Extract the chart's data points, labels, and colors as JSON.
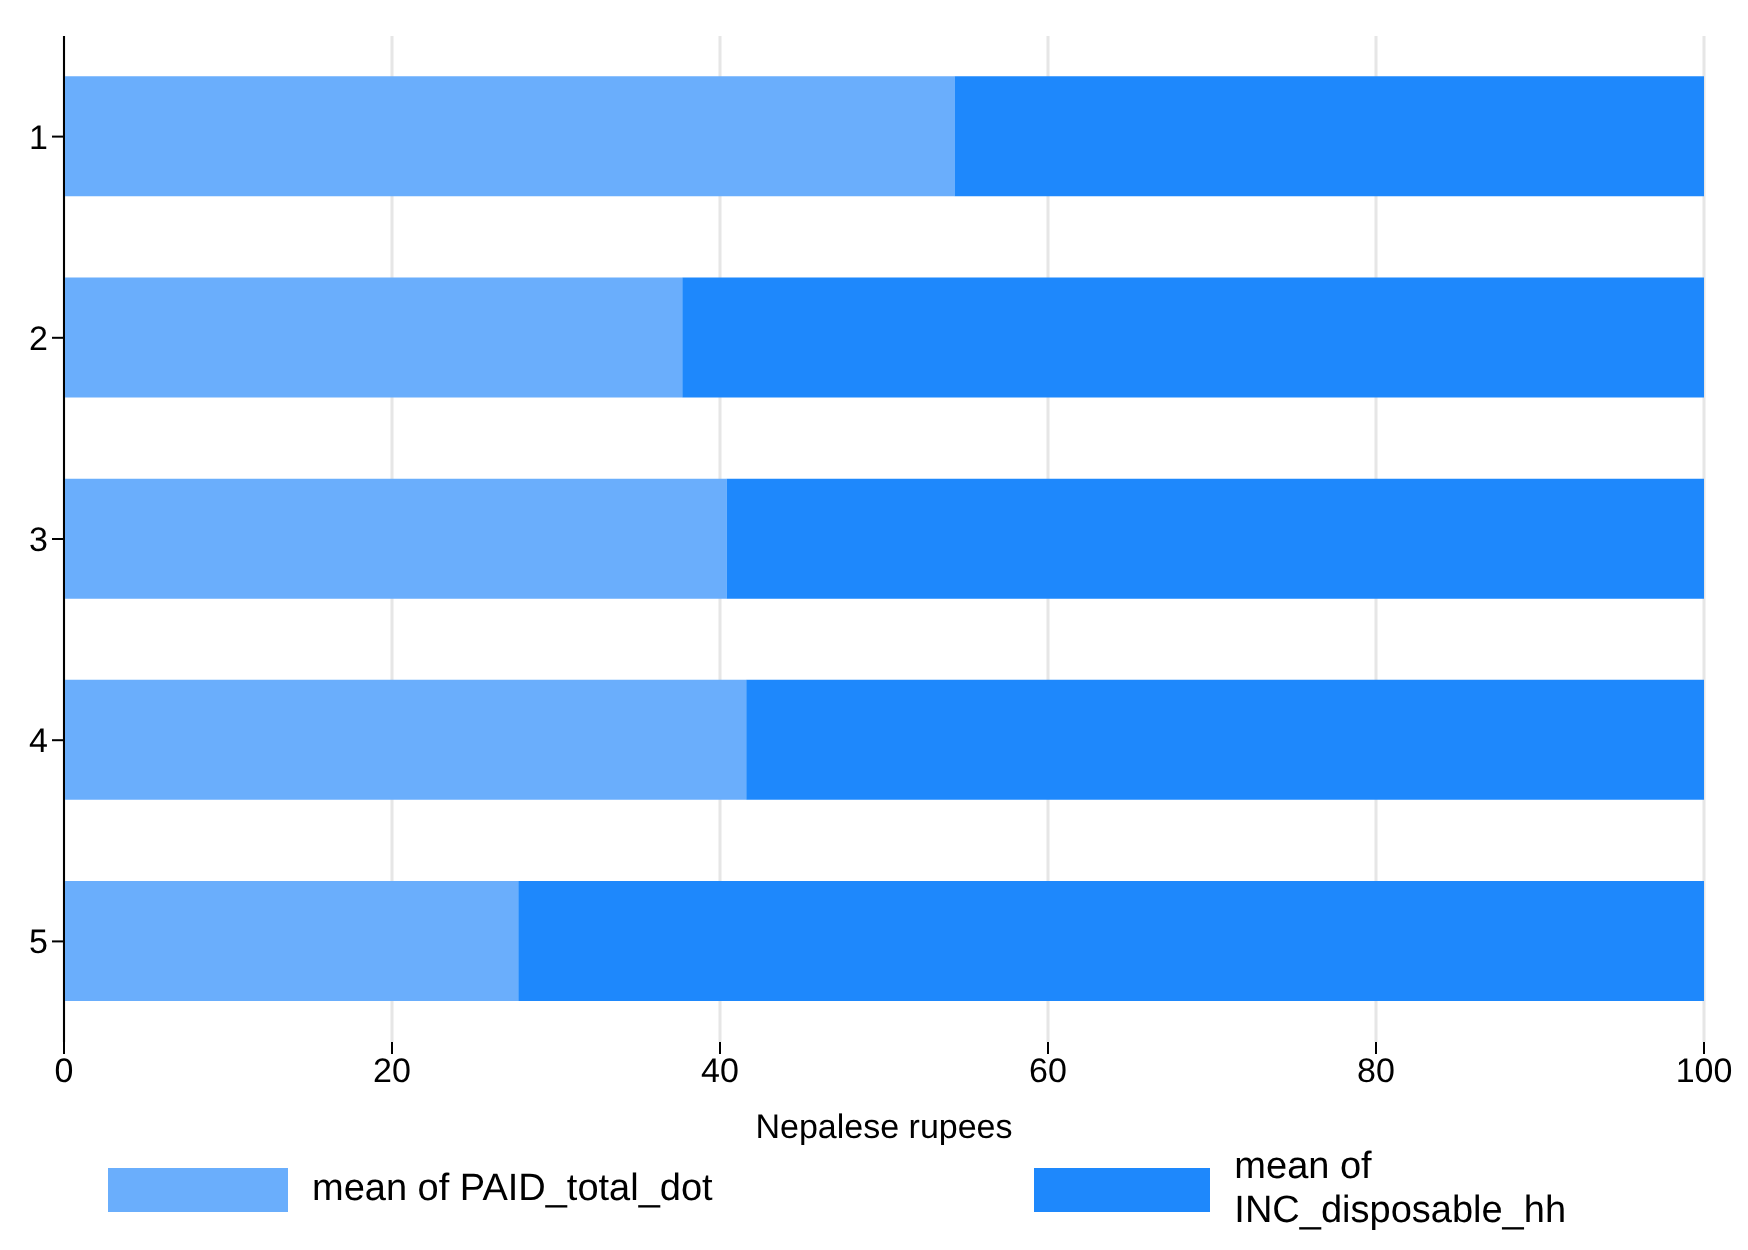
{
  "chart_data": {
    "type": "bar",
    "orientation": "horizontal",
    "stacked": true,
    "categories": [
      "1",
      "2",
      "3",
      "4",
      "5"
    ],
    "series": [
      {
        "name": "mean of PAID_total_dot",
        "color": "#6aaefc",
        "values": [
          54.3,
          37.7,
          40.4,
          41.6,
          27.7
        ]
      },
      {
        "name": "mean of INC_disposable_hh",
        "color": "#1e88fc",
        "values": [
          45.7,
          62.3,
          59.6,
          58.4,
          72.3
        ]
      }
    ],
    "xlabel": "Nepalese rupees",
    "xlim": [
      0,
      100
    ],
    "xticks": [
      0,
      20,
      40,
      60,
      80,
      100
    ],
    "grid": "x",
    "legend": "bottom"
  }
}
